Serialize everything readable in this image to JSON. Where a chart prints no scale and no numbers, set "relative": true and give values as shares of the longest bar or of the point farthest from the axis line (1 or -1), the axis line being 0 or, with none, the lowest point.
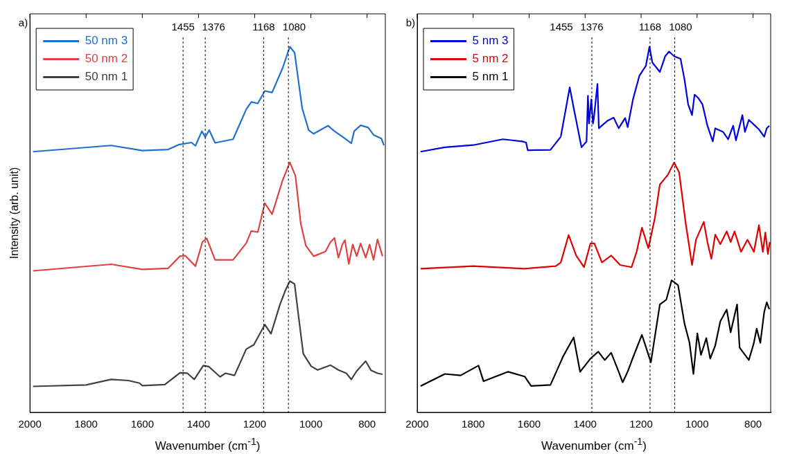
{
  "chart_data": [
    {
      "type": "line",
      "title": "a)",
      "xlabel": "Wavenumber (cm$^{-1}$)",
      "ylabel": "Intensity (arb. unit)",
      "relative": true,
      "xlim": [
        2000,
        735
      ],
      "xticks": [
        2000,
        1800,
        1600,
        1400,
        1200,
        1000,
        800
      ],
      "legend": "top left",
      "ref_lines": [
        {
          "axis": "x",
          "value": 1455,
          "label": "1455",
          "line_style": "dashed",
          "color": "#000000"
        },
        {
          "axis": "x",
          "value": 1376,
          "label": "1376",
          "line_style": "dashed",
          "color": "#000000"
        },
        {
          "axis": "x",
          "value": 1168,
          "label": "1168",
          "line_style": "dashed",
          "color": "#000000"
        },
        {
          "axis": "x",
          "value": 1080,
          "label": "1080",
          "line_style": "dashed",
          "color": "#000000"
        }
      ],
      "series": [
        {
          "name": "50 nm 3",
          "color": "#1f6fd1",
          "x": [
            1989,
            1711,
            1600,
            1508,
            1471,
            1425,
            1411,
            1388,
            1376,
            1362,
            1341,
            1277,
            1230,
            1212,
            1189,
            1164,
            1138,
            1101,
            1075,
            1058,
            1031,
            1008,
            990,
            939,
            916,
            879,
            856,
            846,
            823,
            796,
            777,
            749,
            740
          ],
          "values": [
            0.713,
            0.73,
            0.716,
            0.719,
            0.732,
            0.738,
            0.729,
            0.769,
            0.753,
            0.772,
            0.737,
            0.747,
            0.829,
            0.849,
            0.845,
            0.879,
            0.875,
            0.941,
            1.0,
            0.984,
            0.832,
            0.772,
            0.762,
            0.784,
            0.769,
            0.749,
            0.736,
            0.769,
            0.785,
            0.779,
            0.759,
            0.749,
            0.73
          ]
        },
        {
          "name": "50 nm 2",
          "color": "#e04040",
          "x": [
            1989,
            1711,
            1600,
            1508,
            1466,
            1448,
            1411,
            1386,
            1371,
            1341,
            1277,
            1230,
            1212,
            1189,
            1164,
            1138,
            1101,
            1075,
            1055,
            1036,
            1018,
            990,
            948,
            930,
            916,
            902,
            888,
            879,
            865,
            851,
            837,
            823,
            805,
            791,
            777,
            763,
            745
          ],
          "values": [
            0.387,
            0.405,
            0.391,
            0.394,
            0.427,
            0.429,
            0.4,
            0.466,
            0.476,
            0.417,
            0.417,
            0.463,
            0.496,
            0.493,
            0.572,
            0.542,
            0.634,
            0.684,
            0.647,
            0.516,
            0.456,
            0.427,
            0.44,
            0.466,
            0.477,
            0.423,
            0.459,
            0.471,
            0.406,
            0.459,
            0.427,
            0.462,
            0.423,
            0.459,
            0.417,
            0.473,
            0.427
          ]
        },
        {
          "name": "50 nm 1",
          "color": "#404040",
          "x": [
            1989,
            1800,
            1711,
            1650,
            1610,
            1600,
            1520,
            1466,
            1440,
            1415,
            1383,
            1363,
            1323,
            1304,
            1272,
            1230,
            1203,
            1164,
            1142,
            1110,
            1092,
            1075,
            1058,
            1041,
            1027,
            999,
            976,
            930,
            902,
            874,
            856,
            837,
            805,
            786,
            763,
            745
          ],
          "values": [
            0.071,
            0.075,
            0.09,
            0.087,
            0.08,
            0.073,
            0.076,
            0.108,
            0.107,
            0.09,
            0.128,
            0.125,
            0.097,
            0.107,
            0.101,
            0.173,
            0.185,
            0.24,
            0.215,
            0.295,
            0.331,
            0.359,
            0.351,
            0.245,
            0.16,
            0.126,
            0.116,
            0.129,
            0.116,
            0.107,
            0.09,
            0.113,
            0.14,
            0.115,
            0.107,
            0.104
          ]
        }
      ]
    },
    {
      "type": "line",
      "title": "b)",
      "xlabel": "Wavenumber (cm$^{-1}$)",
      "relative": true,
      "xlim": [
        2000,
        737
      ],
      "xticks": [
        2000,
        1800,
        1600,
        1400,
        1200,
        1000,
        800
      ],
      "legend": "top left",
      "annotations": [
        "1455"
      ],
      "ref_lines": [
        {
          "axis": "x",
          "value": 1376,
          "label": "1376",
          "line_style": "dashed",
          "color": "#000000"
        },
        {
          "axis": "x",
          "value": 1168,
          "label": "1168",
          "line_style": "dashed",
          "color": "#000000"
        },
        {
          "axis": "x",
          "value": 1080,
          "label": "1080",
          "line_style": "dashed",
          "color": "#000000"
        }
      ],
      "series": [
        {
          "name": "5 nm 3",
          "color": "#0000e0",
          "x": [
            1988,
            1901,
            1800,
            1694,
            1625,
            1611,
            1605,
            1524,
            1487,
            1455,
            1441,
            1413,
            1395,
            1390,
            1386,
            1378,
            1372,
            1369,
            1356,
            1351,
            1321,
            1298,
            1280,
            1257,
            1248,
            1229,
            1206,
            1183,
            1170,
            1160,
            1133,
            1114,
            1100,
            1082,
            1059,
            1045,
            1032,
            1018,
            1009,
            995,
            981,
            963,
            944,
            935,
            907,
            889,
            871,
            861,
            838,
            829,
            815,
            797,
            779,
            760,
            751,
            742
          ],
          "values": [
            0.713,
            0.725,
            0.731,
            0.747,
            0.741,
            0.738,
            0.717,
            0.718,
            0.754,
            0.889,
            0.833,
            0.725,
            0.741,
            0.866,
            0.79,
            0.856,
            0.79,
            0.803,
            0.898,
            0.777,
            0.797,
            0.806,
            0.777,
            0.805,
            0.78,
            0.856,
            0.921,
            0.948,
            1.0,
            0.957,
            0.931,
            0.974,
            0.987,
            0.974,
            0.967,
            0.911,
            0.843,
            0.813,
            0.869,
            0.859,
            0.843,
            0.784,
            0.741,
            0.777,
            0.767,
            0.747,
            0.784,
            0.744,
            0.813,
            0.767,
            0.8,
            0.787,
            0.774,
            0.754,
            0.777,
            0.784
          ]
        },
        {
          "name": "5 nm 2",
          "color": "#e00000",
          "x": [
            1988,
            1800,
            1616,
            1505,
            1487,
            1459,
            1432,
            1404,
            1381,
            1367,
            1340,
            1307,
            1275,
            1234,
            1216,
            1197,
            1174,
            1151,
            1133,
            1119,
            1105,
            1082,
            1064,
            1041,
            1018,
            1004,
            976,
            963,
            949,
            935,
            917,
            894,
            880,
            866,
            843,
            820,
            797,
            779,
            765,
            756,
            747,
            740
          ],
          "values": [
            0.393,
            0.4,
            0.393,
            0.4,
            0.41,
            0.485,
            0.429,
            0.397,
            0.462,
            0.462,
            0.41,
            0.429,
            0.403,
            0.397,
            0.439,
            0.505,
            0.449,
            0.531,
            0.623,
            0.636,
            0.649,
            0.683,
            0.656,
            0.519,
            0.403,
            0.472,
            0.521,
            0.466,
            0.42,
            0.486,
            0.46,
            0.495,
            0.466,
            0.495,
            0.439,
            0.472,
            0.439,
            0.512,
            0.439,
            0.492,
            0.433,
            0.466
          ]
        },
        {
          "name": "5 nm 1",
          "color": "#000000",
          "x": [
            1988,
            1901,
            1845,
            1781,
            1763,
            1675,
            1616,
            1593,
            1524,
            1478,
            1441,
            1418,
            1381,
            1353,
            1330,
            1307,
            1280,
            1266,
            1248,
            1229,
            1197,
            1165,
            1133,
            1110,
            1091,
            1068,
            1045,
            1027,
            1013,
            999,
            986,
            967,
            953,
            935,
            917,
            894,
            880,
            857,
            848,
            815,
            797,
            787,
            774,
            760,
            751,
            742
          ],
          "values": [
            0.072,
            0.105,
            0.101,
            0.128,
            0.085,
            0.111,
            0.098,
            0.072,
            0.075,
            0.154,
            0.205,
            0.111,
            0.147,
            0.166,
            0.143,
            0.163,
            0.111,
            0.082,
            0.111,
            0.15,
            0.212,
            0.137,
            0.295,
            0.308,
            0.361,
            0.348,
            0.243,
            0.19,
            0.105,
            0.216,
            0.157,
            0.203,
            0.147,
            0.183,
            0.249,
            0.281,
            0.219,
            0.295,
            0.177,
            0.143,
            0.19,
            0.229,
            0.19,
            0.275,
            0.301,
            0.282
          ]
        }
      ]
    }
  ]
}
